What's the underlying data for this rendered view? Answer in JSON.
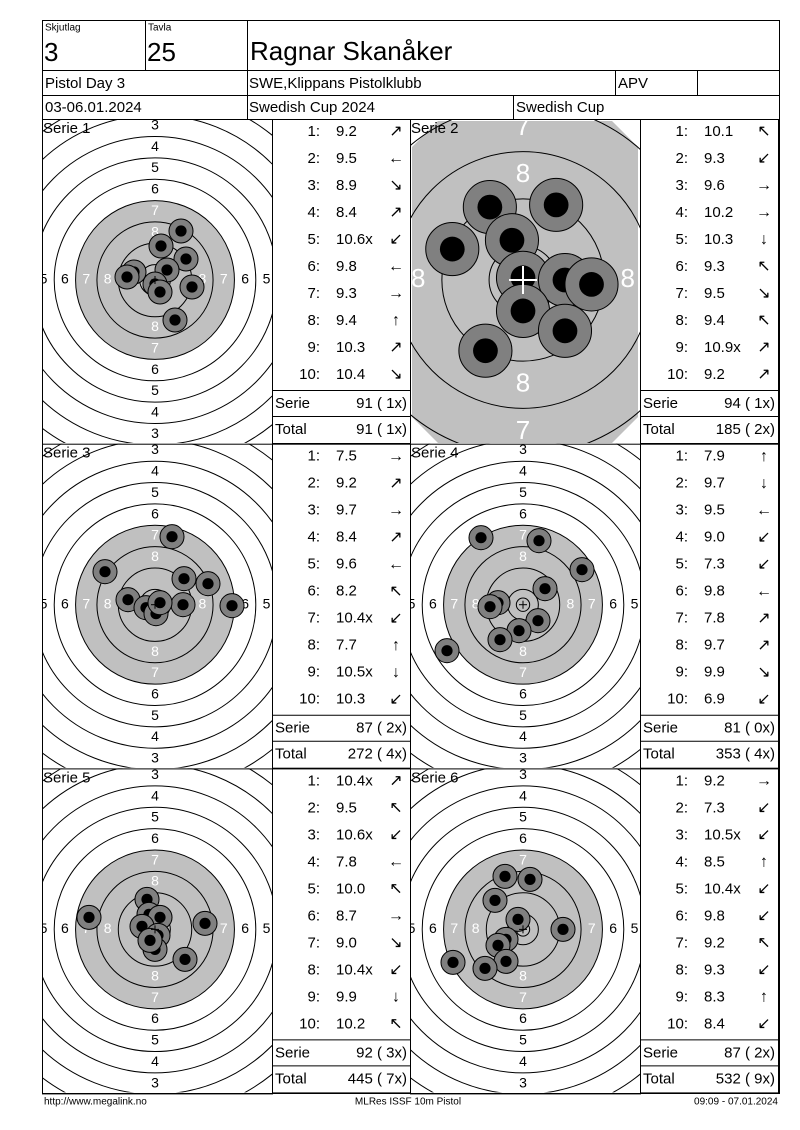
{
  "header": {
    "skjutlag_label": "Skjutlag",
    "skjutlag": "3",
    "tavla_label": "Tavla",
    "tavla": "25",
    "name": "Ragnar Skanåker",
    "event": "Pistol Day 3",
    "club": "SWE,Klippans Pistolklubb",
    "class": "APV",
    "dates": "03-06.01.2024",
    "competition": "Swedish Cup 2024",
    "cup": "Swedish Cup"
  },
  "target": {
    "ring_labels": [
      "3",
      "4",
      "5",
      "6",
      "7",
      "8"
    ]
  },
  "shot_labels": [
    "1:",
    "2:",
    "3:",
    "4:",
    "5:",
    "6:",
    "7:",
    "8:",
    "9:",
    "10:"
  ],
  "serie_label": "Serie",
  "total_label": "Total",
  "series": [
    {
      "title": "Serie 1",
      "shots": [
        {
          "score": "9.2",
          "arrow": "↗"
        },
        {
          "score": "9.5",
          "arrow": "←"
        },
        {
          "score": "8.9",
          "arrow": "↘"
        },
        {
          "score": "8.4",
          "arrow": "↗"
        },
        {
          "score": "10.6x",
          "arrow": "↙"
        },
        {
          "score": "9.8",
          "arrow": "←"
        },
        {
          "score": "9.3",
          "arrow": "→"
        },
        {
          "score": "9.4",
          "arrow": "↑"
        },
        {
          "score": "10.3",
          "arrow": "↗"
        },
        {
          "score": "10.4",
          "arrow": "↘"
        }
      ],
      "serie": "91 ( 1x)",
      "total": "91 ( 1x)"
    },
    {
      "title": "Serie 2",
      "shots": [
        {
          "score": "10.1",
          "arrow": "↖"
        },
        {
          "score": "9.3",
          "arrow": "↙"
        },
        {
          "score": "9.6",
          "arrow": "→"
        },
        {
          "score": "10.2",
          "arrow": "→"
        },
        {
          "score": "10.3",
          "arrow": "↓"
        },
        {
          "score": "9.3",
          "arrow": "↖"
        },
        {
          "score": "9.5",
          "arrow": "↘"
        },
        {
          "score": "9.4",
          "arrow": "↖"
        },
        {
          "score": "10.9x",
          "arrow": "↗"
        },
        {
          "score": "9.2",
          "arrow": "↗"
        }
      ],
      "serie": "94 ( 1x)",
      "total": "185 ( 2x)"
    },
    {
      "title": "Serie 3",
      "shots": [
        {
          "score": "7.5",
          "arrow": "→"
        },
        {
          "score": "9.2",
          "arrow": "↗"
        },
        {
          "score": "9.7",
          "arrow": "→"
        },
        {
          "score": "8.4",
          "arrow": "↗"
        },
        {
          "score": "9.6",
          "arrow": "←"
        },
        {
          "score": "8.2",
          "arrow": "↖"
        },
        {
          "score": "10.4x",
          "arrow": "↙"
        },
        {
          "score": "7.7",
          "arrow": "↑"
        },
        {
          "score": "10.5x",
          "arrow": "↓"
        },
        {
          "score": "10.3",
          "arrow": "↙"
        }
      ],
      "serie": "87 ( 2x)",
      "total": "272 ( 4x)"
    },
    {
      "title": "Serie 4",
      "shots": [
        {
          "score": "7.9",
          "arrow": "↑"
        },
        {
          "score": "9.7",
          "arrow": "↓"
        },
        {
          "score": "9.5",
          "arrow": "←"
        },
        {
          "score": "9.0",
          "arrow": "↙"
        },
        {
          "score": "7.3",
          "arrow": "↙"
        },
        {
          "score": "9.8",
          "arrow": "←"
        },
        {
          "score": "7.8",
          "arrow": "↗"
        },
        {
          "score": "9.7",
          "arrow": "↗"
        },
        {
          "score": "9.9",
          "arrow": "↘"
        },
        {
          "score": "6.9",
          "arrow": "↙"
        }
      ],
      "serie": "81 ( 0x)",
      "total": "353 ( 4x)"
    },
    {
      "title": "Serie 5",
      "shots": [
        {
          "score": "10.4x",
          "arrow": "↗"
        },
        {
          "score": "9.5",
          "arrow": "↖"
        },
        {
          "score": "10.6x",
          "arrow": "↙"
        },
        {
          "score": "7.8",
          "arrow": "←"
        },
        {
          "score": "10.0",
          "arrow": "↖"
        },
        {
          "score": "8.7",
          "arrow": "→"
        },
        {
          "score": "9.0",
          "arrow": "↘"
        },
        {
          "score": "10.4x",
          "arrow": "↙"
        },
        {
          "score": "9.9",
          "arrow": "↓"
        },
        {
          "score": "10.2",
          "arrow": "↖"
        }
      ],
      "serie": "92 ( 3x)",
      "total": "445 ( 7x)"
    },
    {
      "title": "Serie 6",
      "shots": [
        {
          "score": "9.2",
          "arrow": "→"
        },
        {
          "score": "7.3",
          "arrow": "↙"
        },
        {
          "score": "10.5x",
          "arrow": "↙"
        },
        {
          "score": "8.5",
          "arrow": "↑"
        },
        {
          "score": "10.4x",
          "arrow": "↙"
        },
        {
          "score": "9.8",
          "arrow": "↙"
        },
        {
          "score": "9.2",
          "arrow": "↖"
        },
        {
          "score": "9.3",
          "arrow": "↙"
        },
        {
          "score": "8.3",
          "arrow": "↑"
        },
        {
          "score": "8.4",
          "arrow": "↙"
        }
      ],
      "serie": "87 ( 2x)",
      "total": "532 ( 9x)"
    }
  ],
  "footer": {
    "url": "http://www.megalink.no",
    "program": "MLRes ISSF 10m Pistol",
    "timestamp": "09:09 - 07.01.2024"
  }
}
